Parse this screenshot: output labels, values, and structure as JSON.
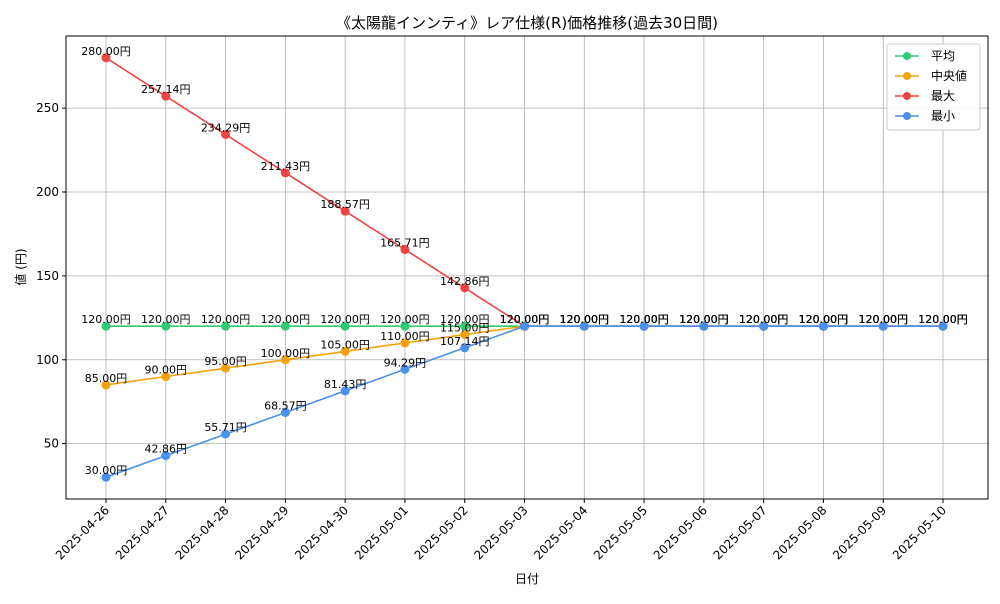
{
  "chart_data": {
    "type": "line",
    "title": "《太陽龍インンティ》レア仕様(R)価格推移(過去30日間)",
    "xlabel": "日付",
    "ylabel": "値 (円)",
    "ylim": [
      17,
      293
    ],
    "yticks": [
      50,
      100,
      150,
      200,
      250
    ],
    "grid": true,
    "legend_position": "top-right",
    "label_suffix": "円",
    "categories": [
      "2025-04-26",
      "2025-04-27",
      "2025-04-28",
      "2025-04-29",
      "2025-04-30",
      "2025-05-01",
      "2025-05-02",
      "2025-05-03",
      "2025-05-04",
      "2025-05-05",
      "2025-05-06",
      "2025-05-07",
      "2025-05-08",
      "2025-05-09",
      "2025-05-10"
    ],
    "series": [
      {
        "name": "平均",
        "color": "#2ecc71",
        "values": [
          120,
          120,
          120,
          120,
          120,
          120,
          120,
          120,
          120,
          120,
          120,
          120,
          120,
          120,
          120
        ]
      },
      {
        "name": "中央値",
        "color": "#f5a10a",
        "values": [
          85,
          90,
          95,
          100,
          105,
          110,
          115,
          120,
          120,
          120,
          120,
          120,
          120,
          120,
          120
        ]
      },
      {
        "name": "最大",
        "color": "#ef4444",
        "values": [
          280,
          257.14,
          234.29,
          211.43,
          188.57,
          165.71,
          142.86,
          120,
          120,
          120,
          120,
          120,
          120,
          120,
          120
        ]
      },
      {
        "name": "最小",
        "color": "#4a90ee",
        "values": [
          30,
          42.86,
          55.71,
          68.57,
          81.43,
          94.29,
          107.14,
          120,
          120,
          120,
          120,
          120,
          120,
          120,
          120
        ]
      }
    ]
  }
}
